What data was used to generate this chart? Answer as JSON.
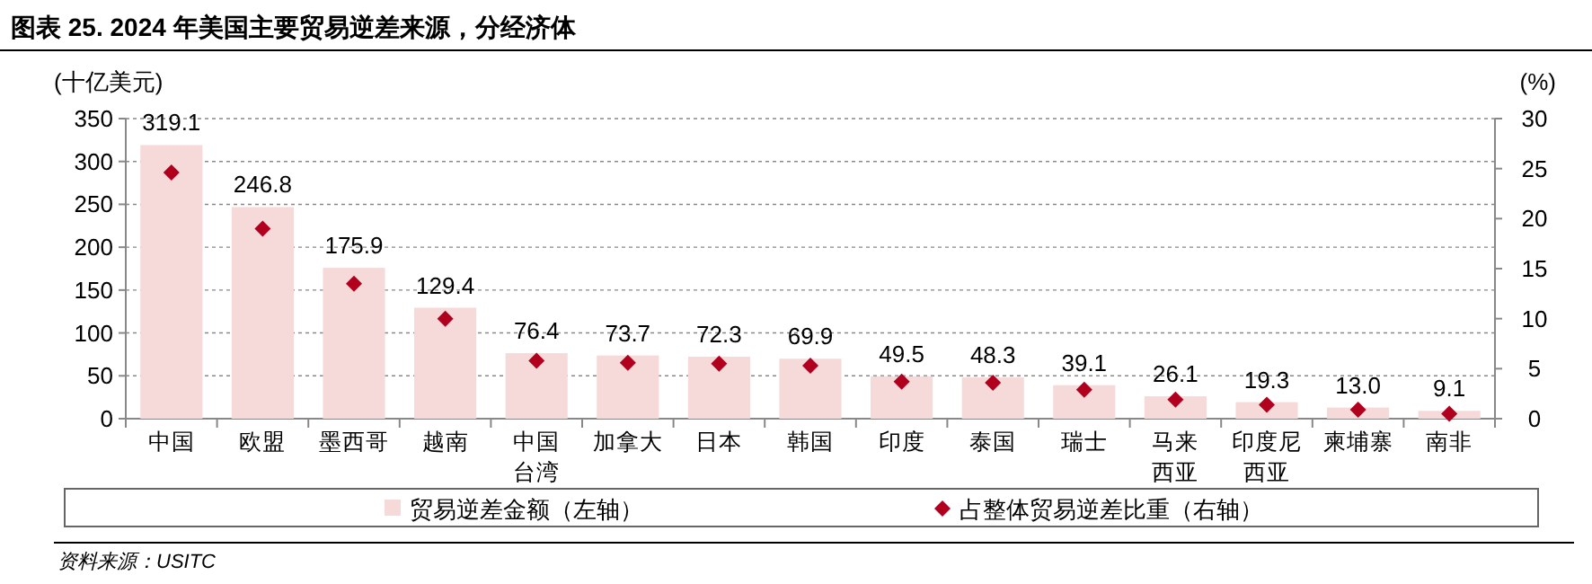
{
  "chart_data": {
    "type": "bar",
    "title": "图表 25. 2024 年美国主要贸易逆差来源，分经济体",
    "categories": [
      "中国",
      "欧盟",
      "墨西哥",
      "越南",
      "中国台湾",
      "加拿大",
      "日本",
      "韩国",
      "印度",
      "泰国",
      "瑞士",
      "马来西亚",
      "印度尼西亚",
      "柬埔寨",
      "南非"
    ],
    "series": [
      {
        "name": "贸易逆差金额（左轴）",
        "color": "#f6d9d9",
        "values": [
          319.1,
          246.8,
          175.9,
          129.4,
          76.4,
          73.7,
          72.3,
          69.9,
          49.5,
          48.3,
          39.1,
          26.1,
          19.3,
          13.0,
          9.1
        ]
      },
      {
        "name": "占整体贸易逆差比重（右轴）",
        "type": "scatter",
        "axis": "y2",
        "marker": "diamond",
        "color": "#b0001e",
        "values": [
          24.6,
          19.0,
          13.5,
          10.0,
          5.8,
          5.6,
          5.5,
          5.3,
          3.7,
          3.6,
          2.9,
          1.9,
          1.4,
          0.9,
          0.5
        ]
      }
    ],
    "value_labels": [
      "319.1",
      "246.8",
      "175.9",
      "129.4",
      "76.4",
      "73.7",
      "72.3",
      "69.9",
      "49.5",
      "48.3",
      "39.1",
      "26.1",
      "19.3",
      "13.0",
      "9.1"
    ],
    "ylabel": "(十亿美元)",
    "y2label": "(%)",
    "ylim": [
      0,
      350
    ],
    "yticks": [
      0,
      50,
      100,
      150,
      200,
      250,
      300,
      350
    ],
    "y2lim": [
      0,
      30
    ],
    "y2ticks": [
      0,
      5,
      10,
      15,
      20,
      25,
      30
    ],
    "grid": "y",
    "legend": "bottom",
    "annotations": [
      "资料来源：USITC"
    ]
  }
}
